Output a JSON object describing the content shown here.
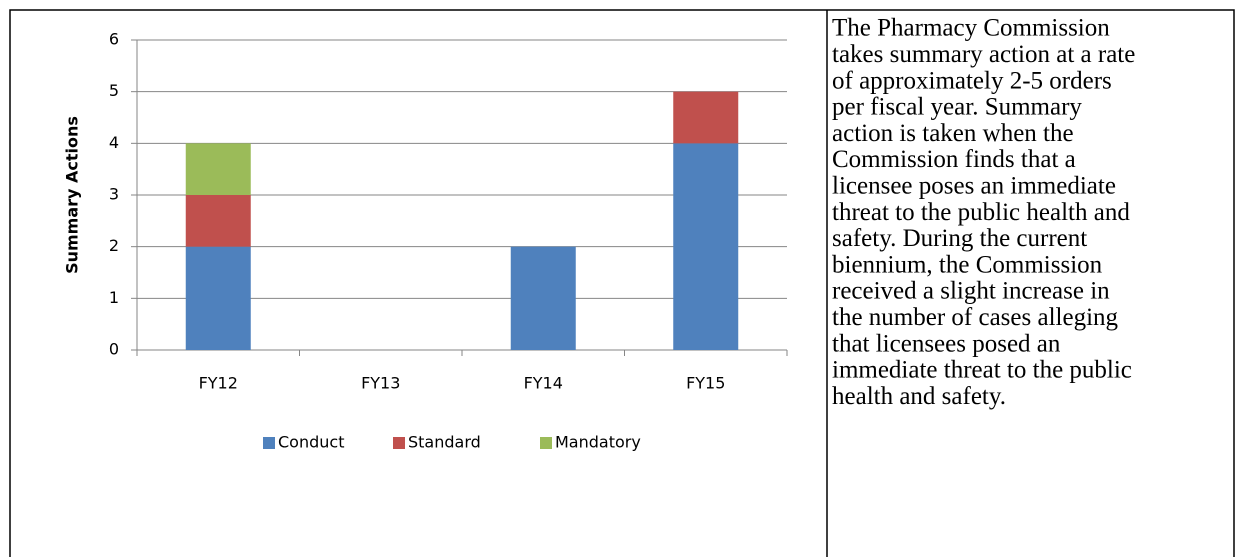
{
  "chart_data": {
    "type": "bar",
    "stacked": true,
    "y_label": "Summary Actions",
    "categories": [
      "FY12",
      "FY13",
      "FY14",
      "FY15"
    ],
    "series": [
      {
        "name": "Conduct",
        "color": "#4f81bd",
        "values": [
          2,
          0,
          2,
          4
        ]
      },
      {
        "name": "Standard",
        "color": "#c0504d",
        "values": [
          1,
          0,
          0,
          1
        ]
      },
      {
        "name": "Mandatory",
        "color": "#9bbb59",
        "values": [
          1,
          0,
          0,
          0
        ]
      }
    ],
    "ylim": [
      0,
      6
    ],
    "yticks": [
      0,
      1,
      2,
      3,
      4,
      5,
      6
    ],
    "grid": true,
    "legend": "bottom"
  },
  "text": {
    "lines": [
      "The Pharmacy Commission",
      "takes summary action at a rate",
      "of approximately 2-5 orders",
      "per fiscal year. Summary",
      "action is taken when the",
      "Commission finds that a",
      "licensee poses an immediate",
      "threat to the public health and",
      "safety. During the current",
      "biennium, the Commission",
      "received a slight increase in",
      "the number of cases alleging",
      "that licensees posed an",
      "immediate threat to the public",
      "health and safety."
    ]
  }
}
